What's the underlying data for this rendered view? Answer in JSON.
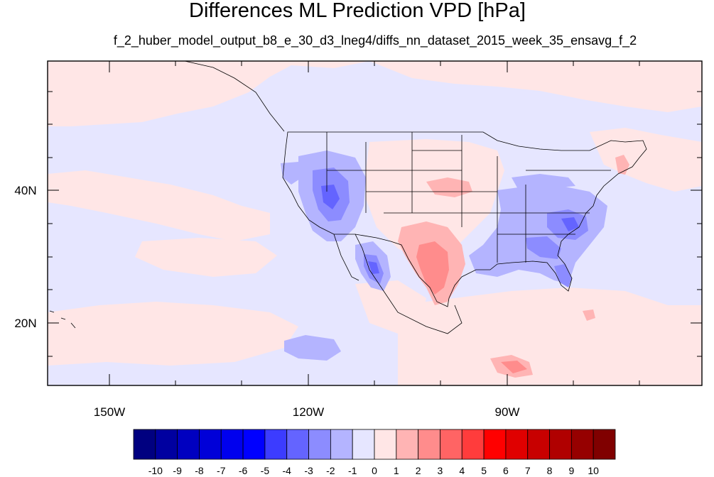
{
  "title": "Differences ML Prediction VPD [hPa]",
  "subtitle": "f_2_huber_model_output_b8_e_30_d3_lneg4/diffs_nn_dataset_2015_week_35_ensavg_f_2",
  "axes": {
    "y_ticks": [
      {
        "label": "40N"
      },
      {
        "label": "20N"
      }
    ],
    "x_ticks": [
      {
        "label": "150W"
      },
      {
        "label": "120W"
      },
      {
        "label": "90W"
      }
    ]
  },
  "colorbar": {
    "labels": [
      "-10",
      "-9",
      "-8",
      "-7",
      "-6",
      "-5",
      "-4",
      "-3",
      "-2",
      "-1",
      "0",
      "1",
      "2",
      "3",
      "4",
      "5",
      "6",
      "7",
      "8",
      "9",
      "10"
    ],
    "colors": [
      "#000080",
      "#0000a0",
      "#0000c0",
      "#0000d8",
      "#0000ee",
      "#0000ff",
      "#3c3cff",
      "#6464ff",
      "#8c8cff",
      "#b4b4ff",
      "#e6e6ff",
      "#ffe6e6",
      "#ffb4b4",
      "#ff8c8c",
      "#ff6464",
      "#ff3c3c",
      "#ff0000",
      "#e00000",
      "#c80000",
      "#b00000",
      "#960000",
      "#800000"
    ]
  },
  "colors": {
    "ocean_background": "#e6e6ff",
    "positive_light": "#ffe6e6",
    "positive_medium": "#ffb4b4",
    "positive_strong": "#ff8c8c",
    "negative_medium": "#b4b4ff",
    "negative_strong": "#8c8cff",
    "negative_deep": "#6464ff"
  }
}
